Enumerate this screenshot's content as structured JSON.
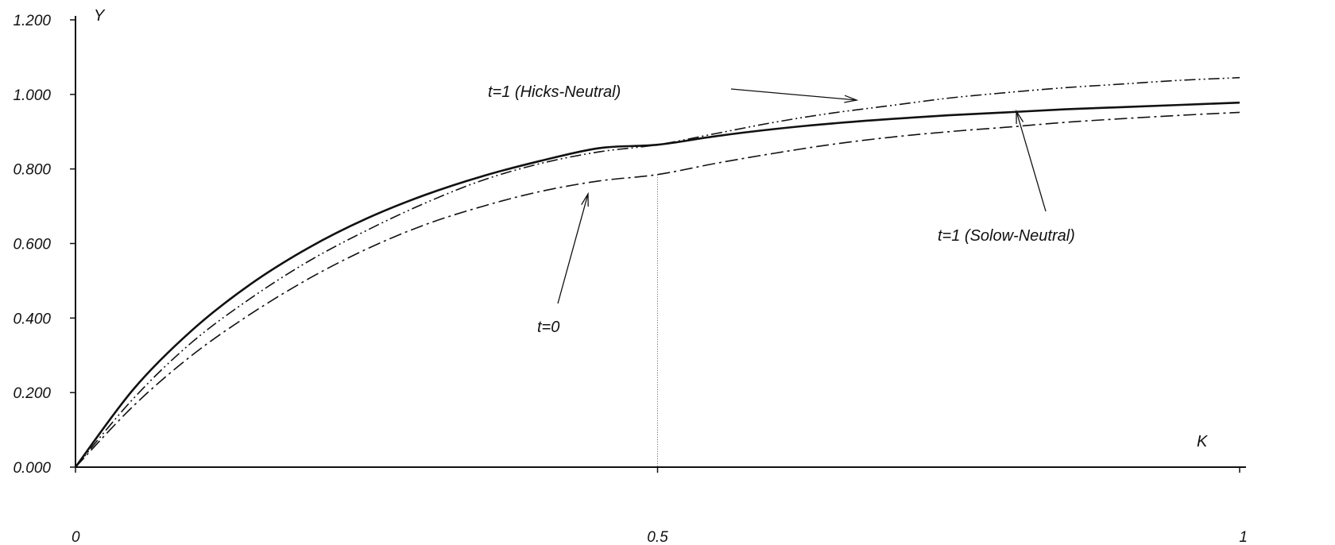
{
  "chart_data": {
    "type": "line",
    "title": "",
    "xlabel": "K",
    "ylabel": "Y",
    "xlim": [
      0,
      1
    ],
    "ylim": [
      0,
      1.2
    ],
    "x_ticks": [
      "0",
      "0.5",
      "1"
    ],
    "y_ticks": [
      "0.000",
      "0.200",
      "0.400",
      "0.600",
      "0.800",
      "1.000",
      "1.200"
    ],
    "grid": false,
    "reference_line_x": 0.5,
    "x": [
      0,
      0.05,
      0.1,
      0.15,
      0.2,
      0.25,
      0.3,
      0.35,
      0.4,
      0.45,
      0.5,
      0.55,
      0.6,
      0.65,
      0.7,
      0.75,
      0.8,
      0.85,
      0.9,
      0.95,
      1
    ],
    "series": [
      {
        "style": "solid",
        "values": [
          0,
          0.21,
          0.367,
          0.49,
          0.588,
          0.667,
          0.73,
          0.781,
          0.822,
          0.856,
          0.865,
          0.888,
          0.907,
          0.922,
          0.934,
          0.944,
          0.952,
          0.96,
          0.966,
          0.972,
          0.978
        ]
      },
      {
        "style": "dash-dot-dot",
        "values": [
          0,
          0.185,
          0.335,
          0.452,
          0.552,
          0.635,
          0.708,
          0.77,
          0.815,
          0.846,
          0.865,
          0.895,
          0.925,
          0.95,
          0.97,
          0.99,
          1.005,
          1.018,
          1.028,
          1.038,
          1.045
        ]
      },
      {
        "style": "dash-dot",
        "values": [
          0,
          0.165,
          0.3,
          0.41,
          0.505,
          0.585,
          0.65,
          0.7,
          0.74,
          0.768,
          0.785,
          0.815,
          0.842,
          0.866,
          0.885,
          0.9,
          0.912,
          0.925,
          0.935,
          0.944,
          0.952
        ]
      }
    ],
    "annotations": [
      {
        "text": "t=1 (Hicks-Neutral)"
      },
      {
        "text": "t=0"
      },
      {
        "text": "t=1 (Solow-Neutral)"
      }
    ]
  }
}
